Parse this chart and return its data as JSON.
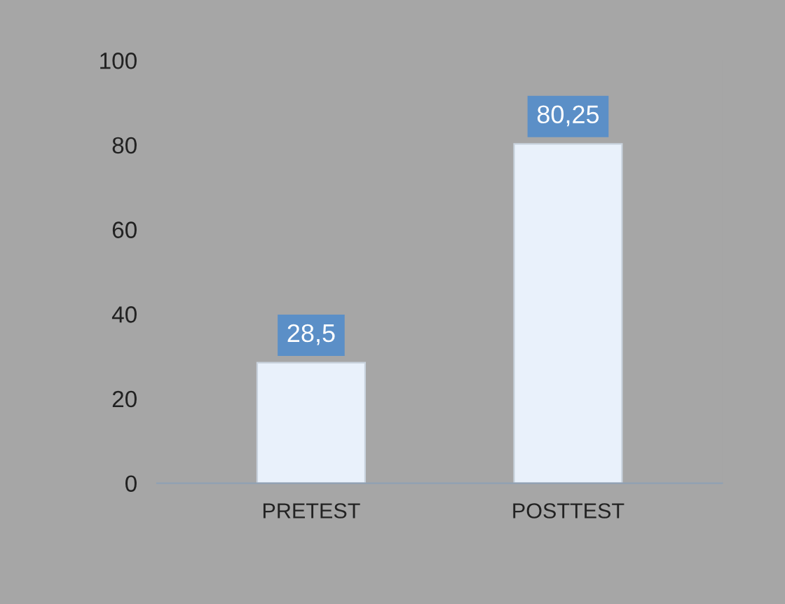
{
  "chart_data": {
    "type": "bar",
    "categories": [
      "PRETEST",
      "POSTTEST"
    ],
    "values": [
      28.5,
      80.25
    ],
    "value_labels": [
      "28,5",
      "80,25"
    ],
    "color": "#e9f1fb",
    "ylim": [
      0,
      100
    ],
    "yticks": [
      0,
      20,
      40,
      60,
      80,
      100
    ],
    "grid": false
  }
}
